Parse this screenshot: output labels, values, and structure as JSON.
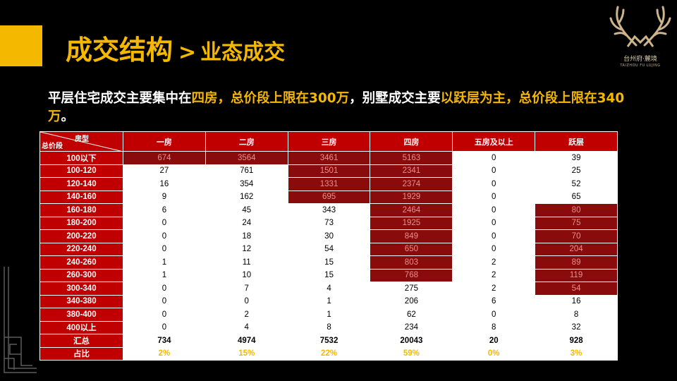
{
  "title": {
    "main": "成交结构",
    "separator": ">",
    "sub": "业态成交"
  },
  "logo": {
    "line1": "台州府·麓境",
    "line2": "TAIZHOU FU LUJING"
  },
  "summary": [
    {
      "text": "平层住宅成交主要集中在",
      "hl": false
    },
    {
      "text": "四房，总价段上限在300万",
      "hl": true
    },
    {
      "text": "，别墅成交主要",
      "hl": false
    },
    {
      "text": "以跃层为主，总价段上限在340万",
      "hl": true
    },
    {
      "text": "。",
      "hl": false
    }
  ],
  "table": {
    "corner": {
      "top": "房型",
      "bottom": "总价段"
    },
    "columns": [
      "一房",
      "二房",
      "三房",
      "四房",
      "五房及以上",
      "跃层"
    ],
    "rows": [
      {
        "label": "100以下",
        "values": [
          "674",
          "3564",
          "3461",
          "5163",
          "0",
          "39"
        ],
        "hot": [
          1,
          1,
          1,
          1,
          0,
          0
        ]
      },
      {
        "label": "100-120",
        "values": [
          "27",
          "761",
          "1501",
          "2341",
          "0",
          "25"
        ],
        "hot": [
          0,
          0,
          1,
          1,
          0,
          0
        ]
      },
      {
        "label": "120-140",
        "values": [
          "16",
          "354",
          "1331",
          "2374",
          "0",
          "52"
        ],
        "hot": [
          0,
          0,
          1,
          1,
          0,
          0
        ]
      },
      {
        "label": "140-160",
        "values": [
          "9",
          "162",
          "695",
          "1929",
          "0",
          "65"
        ],
        "hot": [
          0,
          0,
          1,
          1,
          0,
          0
        ]
      },
      {
        "label": "160-180",
        "values": [
          "6",
          "45",
          "343",
          "2464",
          "0",
          "80"
        ],
        "hot": [
          0,
          0,
          0,
          1,
          0,
          1
        ]
      },
      {
        "label": "180-200",
        "values": [
          "0",
          "24",
          "73",
          "1925",
          "0",
          "75"
        ],
        "hot": [
          0,
          0,
          0,
          1,
          0,
          1
        ]
      },
      {
        "label": "200-220",
        "values": [
          "0",
          "18",
          "30",
          "849",
          "0",
          "70"
        ],
        "hot": [
          0,
          0,
          0,
          1,
          0,
          1
        ]
      },
      {
        "label": "220-240",
        "values": [
          "0",
          "12",
          "54",
          "650",
          "0",
          "204"
        ],
        "hot": [
          0,
          0,
          0,
          1,
          0,
          1
        ]
      },
      {
        "label": "240-260",
        "values": [
          "1",
          "11",
          "15",
          "803",
          "2",
          "89"
        ],
        "hot": [
          0,
          0,
          0,
          1,
          0,
          1
        ]
      },
      {
        "label": "260-300",
        "values": [
          "1",
          "10",
          "15",
          "768",
          "2",
          "119"
        ],
        "hot": [
          0,
          0,
          0,
          1,
          0,
          1
        ]
      },
      {
        "label": "300-340",
        "values": [
          "0",
          "7",
          "4",
          "275",
          "2",
          "54"
        ],
        "hot": [
          0,
          0,
          0,
          0,
          0,
          1
        ]
      },
      {
        "label": "340-380",
        "values": [
          "0",
          "0",
          "1",
          "206",
          "6",
          "16"
        ],
        "hot": [
          0,
          0,
          0,
          0,
          0,
          0
        ]
      },
      {
        "label": "380-400",
        "values": [
          "0",
          "2",
          "1",
          "62",
          "0",
          "8"
        ],
        "hot": [
          0,
          0,
          0,
          0,
          0,
          0
        ]
      },
      {
        "label": "400以上",
        "values": [
          "0",
          "4",
          "8",
          "234",
          "8",
          "32"
        ],
        "hot": [
          0,
          0,
          0,
          0,
          0,
          0
        ]
      }
    ],
    "total": {
      "label": "汇总",
      "values": [
        "734",
        "4974",
        "7532",
        "20043",
        "20",
        "928"
      ]
    },
    "share": {
      "label": "占比",
      "values": [
        "2%",
        "15%",
        "22%",
        "59%",
        "0%",
        "3%"
      ]
    }
  },
  "colors": {
    "accent": "#f5b800",
    "header_red": "#c00000",
    "highlight_cell": "#8a0b0b"
  }
}
